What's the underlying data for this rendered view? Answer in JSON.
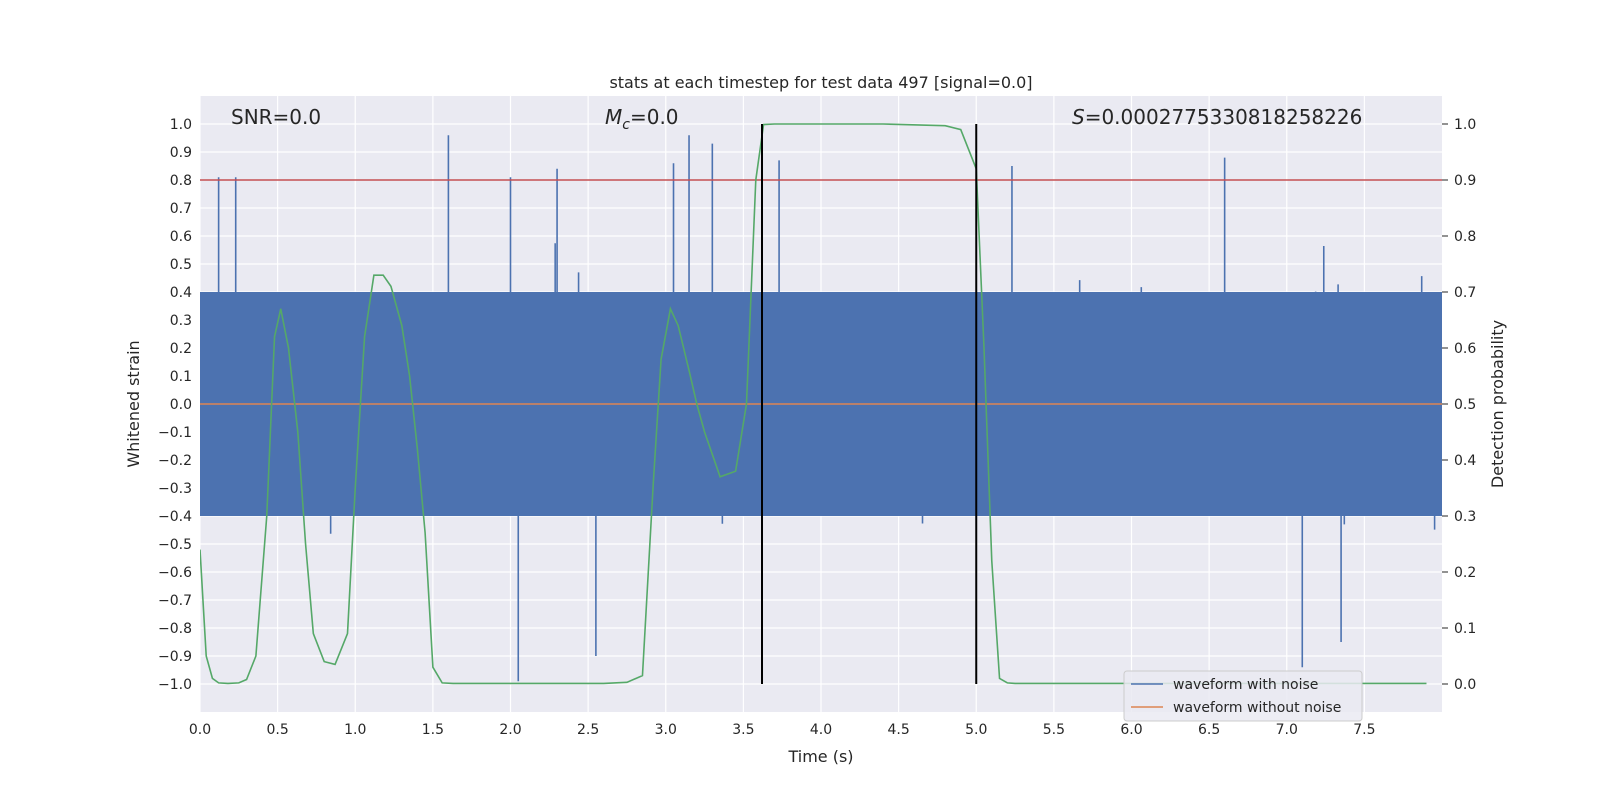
{
  "chart_data": {
    "type": "line",
    "title": "stats at each timestep for test data 497 [signal=0.0]",
    "xlabel": "Time (s)",
    "ylabel_left": "Whitened strain",
    "ylabel_right": "Detection probability",
    "xlim": [
      0,
      8
    ],
    "ylim_left": [
      -1.1,
      1.1
    ],
    "ylim_right": [
      -0.05,
      1.05
    ],
    "xticks": [
      0.0,
      0.5,
      1.0,
      1.5,
      2.0,
      2.5,
      3.0,
      3.5,
      4.0,
      4.5,
      5.0,
      5.5,
      6.0,
      6.5,
      7.0,
      7.5
    ],
    "xtick_labels": [
      "0.0",
      "0.5",
      "1.0",
      "1.5",
      "2.0",
      "2.5",
      "3.0",
      "3.5",
      "4.0",
      "4.5",
      "5.0",
      "5.5",
      "6.0",
      "6.5",
      "7.0",
      "7.5"
    ],
    "yticks_left": [
      1.0,
      0.9,
      0.8,
      0.7,
      0.6,
      0.5,
      0.4,
      0.3,
      0.2,
      0.1,
      0.0,
      -0.1,
      -0.2,
      -0.3,
      -0.4,
      -0.5,
      -0.6,
      -0.7,
      -0.8,
      -0.9,
      -1.0
    ],
    "ytick_labels_left": [
      "1.0",
      "0.9",
      "0.8",
      "0.7",
      "0.6",
      "0.5",
      "0.4",
      "0.3",
      "0.2",
      "0.1",
      "0.0",
      "−0.1",
      "−0.2",
      "−0.3",
      "−0.4",
      "−0.5",
      "−0.6",
      "−0.7",
      "−0.8",
      "−0.9",
      "−1.0"
    ],
    "yticks_right": [
      1.0,
      0.9,
      0.8,
      0.7,
      0.6,
      0.5,
      0.4,
      0.3,
      0.2,
      0.1,
      0.0
    ],
    "ytick_labels_right": [
      "1.0",
      "0.9",
      "0.8",
      "0.7",
      "0.6",
      "0.5",
      "0.4",
      "0.3",
      "0.2",
      "0.1",
      "0.0"
    ],
    "annotations": {
      "snr": "SNR=0.0",
      "mc_symbol": "M",
      "mc_sub": "c",
      "mc_value": "=0.0",
      "s_symbol": "S",
      "s_value": "=0.0002775330818258226"
    },
    "legend": {
      "location": "lower-right",
      "entries": [
        {
          "label": "waveform with noise",
          "color": "#4c72b0"
        },
        {
          "label": "waveform without noise",
          "color": "#dd8452"
        }
      ]
    },
    "series": [
      {
        "name": "waveform with noise",
        "axis": "left",
        "color": "#4c72b0",
        "kind": "noise",
        "duration": 8.0,
        "mean": 0.0,
        "typical_amplitude": 0.4,
        "peak_max": 0.96,
        "peak_min": -0.99,
        "notable_peaks": [
          {
            "x": 0.12,
            "y": 0.81
          },
          {
            "x": 0.23,
            "y": 0.81
          },
          {
            "x": 1.6,
            "y": 0.96
          },
          {
            "x": 2.0,
            "y": 0.81
          },
          {
            "x": 2.3,
            "y": 0.84
          },
          {
            "x": 3.05,
            "y": 0.86
          },
          {
            "x": 3.15,
            "y": 0.96
          },
          {
            "x": 3.3,
            "y": 0.93
          },
          {
            "x": 3.73,
            "y": 0.87
          },
          {
            "x": 5.23,
            "y": 0.85
          },
          {
            "x": 6.6,
            "y": 0.88
          },
          {
            "x": 2.05,
            "y": -0.99
          },
          {
            "x": 2.55,
            "y": -0.9
          },
          {
            "x": 7.1,
            "y": -0.94
          },
          {
            "x": 7.35,
            "y": -0.85
          }
        ]
      },
      {
        "name": "waveform without noise",
        "axis": "left",
        "color": "#dd8452",
        "kind": "line",
        "x": [
          0.0,
          8.0
        ],
        "y": [
          0.0,
          0.0
        ]
      },
      {
        "name": "detection probability",
        "axis": "right",
        "color": "#55a868",
        "kind": "line",
        "x": [
          0.0,
          0.04,
          0.08,
          0.12,
          0.18,
          0.25,
          0.3,
          0.36,
          0.43,
          0.48,
          0.52,
          0.57,
          0.63,
          0.68,
          0.73,
          0.8,
          0.87,
          0.95,
          1.0,
          1.06,
          1.12,
          1.18,
          1.23,
          1.3,
          1.35,
          1.4,
          1.45,
          1.5,
          1.56,
          1.63,
          1.7,
          1.8,
          2.0,
          2.2,
          2.4,
          2.6,
          2.75,
          2.85,
          2.92,
          2.97,
          3.03,
          3.08,
          3.15,
          3.2,
          3.25,
          3.35,
          3.45,
          3.52,
          3.58,
          3.63,
          3.7,
          3.8,
          4.0,
          4.4,
          4.8,
          4.9,
          5.0,
          5.05,
          5.1,
          5.15,
          5.2,
          5.25,
          5.4,
          6.0,
          7.0,
          7.9
        ],
        "y": [
          0.24,
          0.05,
          0.01,
          0.002,
          0.001,
          0.002,
          0.008,
          0.05,
          0.3,
          0.62,
          0.67,
          0.6,
          0.45,
          0.25,
          0.09,
          0.04,
          0.035,
          0.09,
          0.35,
          0.62,
          0.73,
          0.73,
          0.71,
          0.64,
          0.55,
          0.42,
          0.27,
          0.03,
          0.002,
          0.001,
          0.001,
          0.001,
          0.001,
          0.001,
          0.001,
          0.001,
          0.003,
          0.015,
          0.36,
          0.58,
          0.67,
          0.64,
          0.56,
          0.5,
          0.45,
          0.37,
          0.38,
          0.5,
          0.9,
          0.999,
          1.0,
          1.0,
          1.0,
          1.0,
          0.997,
          0.99,
          0.92,
          0.6,
          0.22,
          0.01,
          0.002,
          0.001,
          0.001,
          0.001,
          0.001,
          0.001
        ]
      }
    ],
    "hlines": [
      {
        "axis": "left",
        "y": 0.8,
        "color": "#c44e52"
      }
    ],
    "vlines": [
      {
        "x": 3.62,
        "y_from": -1.0,
        "y_to": 1.0,
        "color": "#000000"
      },
      {
        "x": 5.0,
        "y_from": -1.0,
        "y_to": 1.0,
        "color": "#000000"
      }
    ]
  }
}
